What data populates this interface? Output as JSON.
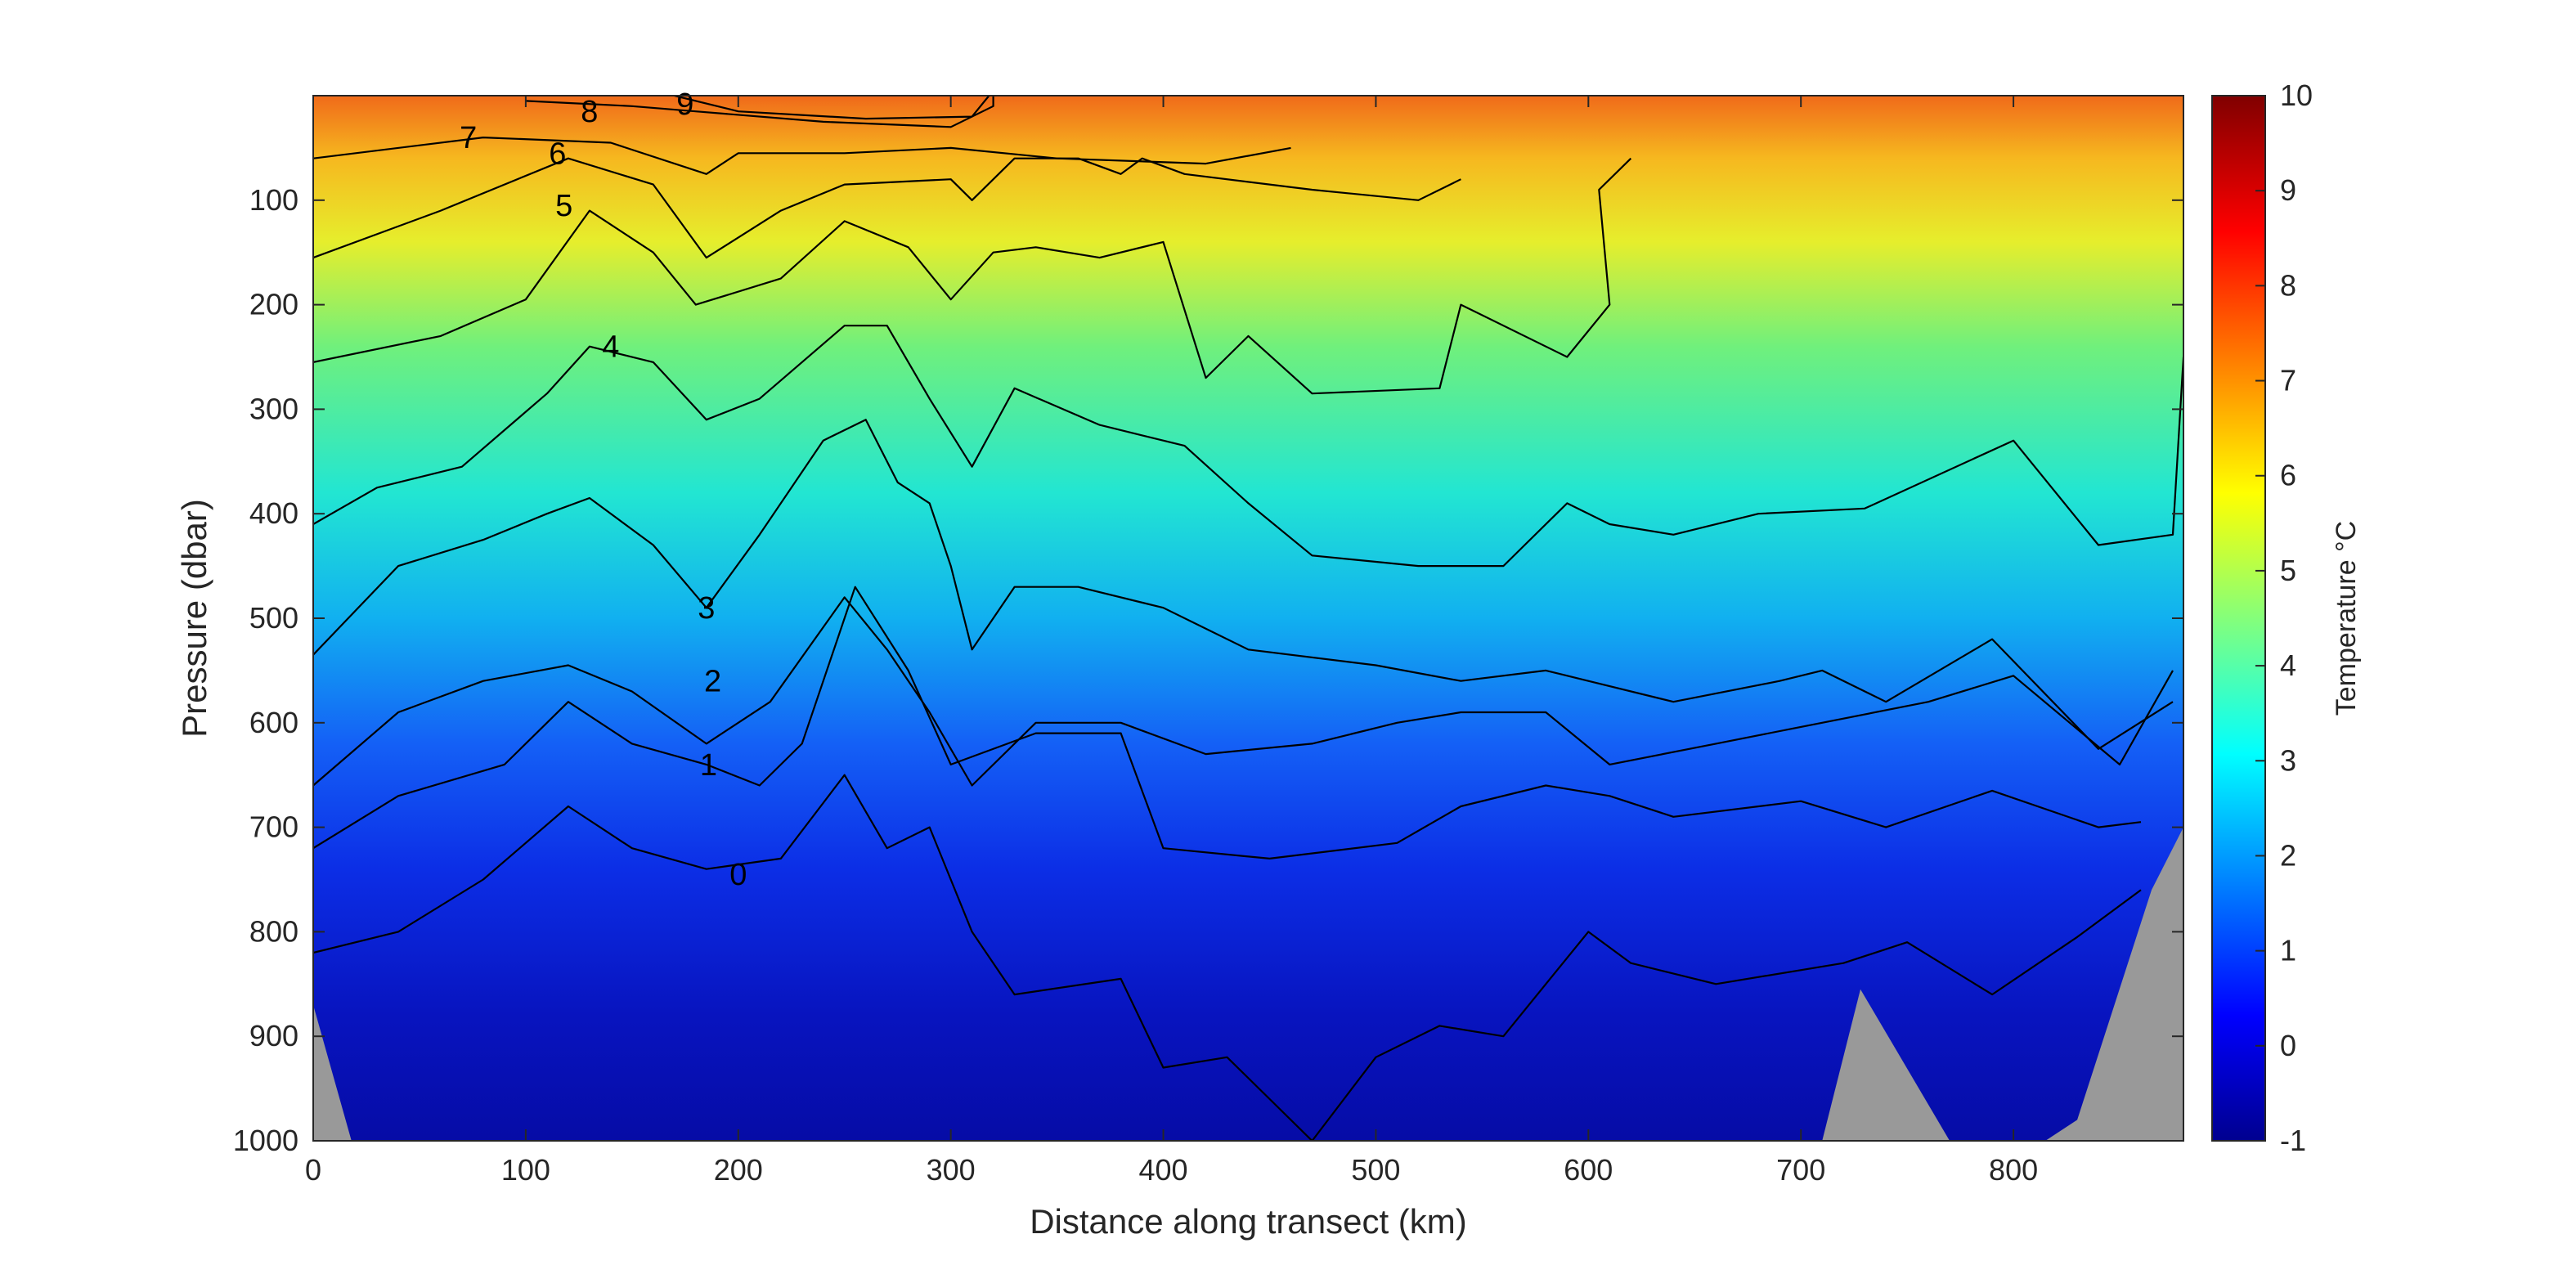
{
  "chart_data": {
    "type": "heatmap",
    "subtype": "ocean-temperature-section-with-contours",
    "title": "",
    "xlabel": "Distance along transect (km)",
    "ylabel": "Pressure (dbar)",
    "colorbar_label": "Temperature °C",
    "colormap": "jet",
    "xlim": [
      0,
      880
    ],
    "ylim": [
      1000,
      0
    ],
    "y_reversed": true,
    "clim": [
      -1,
      10
    ],
    "x_ticks": [
      0,
      100,
      200,
      300,
      400,
      500,
      600,
      700,
      800
    ],
    "y_ticks": [
      100,
      200,
      300,
      400,
      500,
      600,
      700,
      800,
      900,
      1000
    ],
    "colorbar_ticks": [
      -1,
      0,
      1,
      2,
      3,
      4,
      5,
      6,
      7,
      8,
      9,
      10
    ],
    "colors": {
      "seafloor": "#999999",
      "contour": "#000000",
      "axis": "#262626"
    },
    "contours": [
      {
        "level": 9,
        "points": [
          [
            170,
            0
          ],
          [
            200,
            15
          ],
          [
            260,
            22
          ],
          [
            310,
            20
          ],
          [
            318,
            0
          ]
        ],
        "label_at": [
          175,
          8
        ]
      },
      {
        "level": 8,
        "points": [
          [
            100,
            5
          ],
          [
            150,
            10
          ],
          [
            180,
            15
          ],
          [
            240,
            25
          ],
          [
            300,
            30
          ],
          [
            320,
            10
          ],
          [
            320,
            0
          ]
        ],
        "label_at": [
          130,
          15
        ]
      },
      {
        "level": 7,
        "points": [
          [
            0,
            60
          ],
          [
            80,
            40
          ],
          [
            140,
            45
          ],
          [
            185,
            75
          ],
          [
            200,
            55
          ],
          [
            250,
            55
          ],
          [
            300,
            50
          ],
          [
            350,
            60
          ],
          [
            420,
            65
          ],
          [
            460,
            50
          ]
        ],
        "label_at": [
          73,
          40
        ]
      },
      {
        "level": 6,
        "points": [
          [
            0,
            155
          ],
          [
            60,
            110
          ],
          [
            120,
            60
          ],
          [
            160,
            85
          ],
          [
            185,
            155
          ],
          [
            220,
            110
          ],
          [
            250,
            85
          ],
          [
            300,
            80
          ],
          [
            310,
            100
          ],
          [
            330,
            60
          ],
          [
            360,
            60
          ],
          [
            380,
            75
          ],
          [
            390,
            60
          ],
          [
            410,
            75
          ],
          [
            470,
            90
          ],
          [
            520,
            100
          ],
          [
            540,
            80
          ]
        ],
        "label_at": [
          115,
          55
        ]
      },
      {
        "level": 5,
        "points": [
          [
            0,
            255
          ],
          [
            60,
            230
          ],
          [
            100,
            195
          ],
          [
            130,
            110
          ],
          [
            160,
            150
          ],
          [
            180,
            200
          ],
          [
            220,
            175
          ],
          [
            250,
            120
          ],
          [
            280,
            145
          ],
          [
            300,
            195
          ],
          [
            320,
            150
          ],
          [
            340,
            145
          ],
          [
            370,
            155
          ],
          [
            400,
            140
          ],
          [
            420,
            270
          ],
          [
            440,
            230
          ],
          [
            470,
            285
          ],
          [
            530,
            280
          ],
          [
            540,
            200
          ],
          [
            590,
            250
          ],
          [
            610,
            200
          ],
          [
            605,
            90
          ],
          [
            620,
            60
          ]
        ],
        "label_at": [
          118,
          105
        ]
      },
      {
        "level": 4,
        "points": [
          [
            0,
            410
          ],
          [
            30,
            375
          ],
          [
            70,
            355
          ],
          [
            110,
            285
          ],
          [
            130,
            240
          ],
          [
            160,
            255
          ],
          [
            185,
            310
          ],
          [
            210,
            290
          ],
          [
            250,
            220
          ],
          [
            270,
            220
          ],
          [
            290,
            290
          ],
          [
            310,
            355
          ],
          [
            330,
            280
          ],
          [
            370,
            315
          ],
          [
            410,
            335
          ],
          [
            440,
            390
          ],
          [
            470,
            440
          ],
          [
            520,
            450
          ],
          [
            560,
            450
          ],
          [
            590,
            390
          ],
          [
            610,
            410
          ],
          [
            640,
            420
          ],
          [
            680,
            400
          ],
          [
            730,
            395
          ],
          [
            800,
            330
          ],
          [
            840,
            430
          ],
          [
            875,
            420
          ],
          [
            880,
            250
          ]
        ],
        "label_at": [
          140,
          240
        ]
      },
      {
        "level": 3,
        "points": [
          [
            0,
            535
          ],
          [
            40,
            450
          ],
          [
            80,
            425
          ],
          [
            110,
            400
          ],
          [
            130,
            385
          ],
          [
            160,
            430
          ],
          [
            185,
            490
          ],
          [
            210,
            420
          ],
          [
            240,
            330
          ],
          [
            260,
            310
          ],
          [
            275,
            370
          ],
          [
            290,
            390
          ],
          [
            300,
            450
          ],
          [
            310,
            530
          ],
          [
            330,
            470
          ],
          [
            360,
            470
          ],
          [
            400,
            490
          ],
          [
            440,
            530
          ],
          [
            500,
            545
          ],
          [
            540,
            560
          ],
          [
            580,
            550
          ],
          [
            600,
            560
          ],
          [
            640,
            580
          ],
          [
            690,
            560
          ],
          [
            710,
            550
          ],
          [
            740,
            580
          ],
          [
            790,
            520
          ],
          [
            840,
            625
          ],
          [
            875,
            580
          ]
        ],
        "label_at": [
          185,
          490
        ]
      },
      {
        "level": 2,
        "points": [
          [
            0,
            660
          ],
          [
            40,
            590
          ],
          [
            80,
            560
          ],
          [
            120,
            545
          ],
          [
            150,
            570
          ],
          [
            185,
            620
          ],
          [
            215,
            580
          ],
          [
            250,
            480
          ],
          [
            270,
            530
          ],
          [
            290,
            590
          ],
          [
            310,
            660
          ],
          [
            340,
            600
          ],
          [
            380,
            600
          ],
          [
            420,
            630
          ],
          [
            470,
            620
          ],
          [
            510,
            600
          ],
          [
            540,
            590
          ],
          [
            580,
            590
          ],
          [
            610,
            640
          ],
          [
            660,
            620
          ],
          [
            710,
            600
          ],
          [
            760,
            580
          ],
          [
            800,
            555
          ],
          [
            850,
            640
          ],
          [
            875,
            550
          ]
        ],
        "label_at": [
          188,
          560
        ]
      },
      {
        "level": 1,
        "points": [
          [
            0,
            720
          ],
          [
            40,
            670
          ],
          [
            90,
            640
          ],
          [
            120,
            580
          ],
          [
            150,
            620
          ],
          [
            185,
            640
          ],
          [
            210,
            660
          ],
          [
            230,
            620
          ],
          [
            255,
            470
          ],
          [
            280,
            550
          ],
          [
            300,
            640
          ],
          [
            340,
            610
          ],
          [
            380,
            610
          ],
          [
            400,
            720
          ],
          [
            450,
            730
          ],
          [
            510,
            715
          ],
          [
            540,
            680
          ],
          [
            580,
            660
          ],
          [
            610,
            670
          ],
          [
            640,
            690
          ],
          [
            700,
            675
          ],
          [
            740,
            700
          ],
          [
            790,
            665
          ],
          [
            840,
            700
          ],
          [
            860,
            695
          ]
        ],
        "label_at": [
          186,
          640
        ]
      },
      {
        "level": 0,
        "points": [
          [
            0,
            820
          ],
          [
            40,
            800
          ],
          [
            80,
            750
          ],
          [
            120,
            680
          ],
          [
            150,
            720
          ],
          [
            185,
            740
          ],
          [
            220,
            730
          ],
          [
            250,
            650
          ],
          [
            270,
            720
          ],
          [
            290,
            700
          ],
          [
            310,
            800
          ],
          [
            330,
            860
          ],
          [
            380,
            845
          ],
          [
            400,
            930
          ],
          [
            430,
            920
          ],
          [
            470,
            1000
          ],
          [
            500,
            920
          ],
          [
            530,
            890
          ],
          [
            560,
            900
          ],
          [
            600,
            800
          ],
          [
            620,
            830
          ],
          [
            660,
            850
          ],
          [
            720,
            830
          ],
          [
            750,
            810
          ],
          [
            790,
            860
          ],
          [
            830,
            805
          ],
          [
            860,
            760
          ]
        ],
        "label_at": [
          200,
          745
        ]
      }
    ],
    "seafloor_polygons": [
      {
        "points": [
          [
            0,
            870
          ],
          [
            18,
            1000
          ],
          [
            0,
            1000
          ]
        ]
      },
      {
        "points": [
          [
            710,
            1000
          ],
          [
            728,
            855
          ],
          [
            770,
            1000
          ]
        ]
      },
      {
        "points": [
          [
            815,
            1000
          ],
          [
            830,
            980
          ],
          [
            865,
            760
          ],
          [
            880,
            700
          ],
          [
            880,
            1000
          ]
        ]
      }
    ]
  }
}
